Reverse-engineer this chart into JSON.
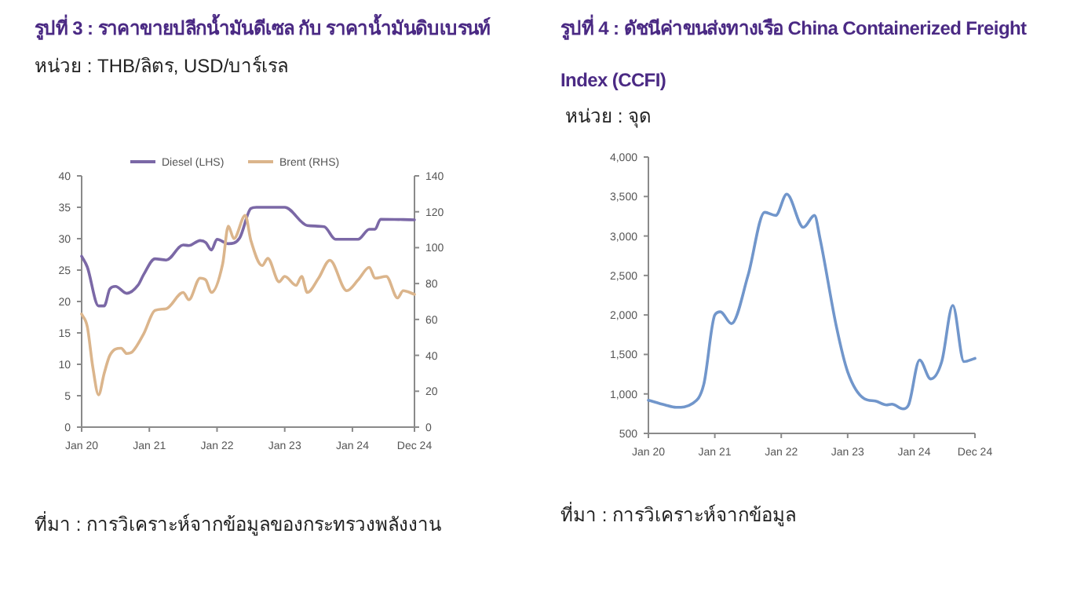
{
  "chart_data": [
    {
      "type": "line",
      "title": "รูปที่ 3 : ราคาขายปลีกน้ำมันดีเซล กับ ราคาน้ำมันดิบเบรนท์",
      "subtitle": "หน่วย : THB/ลิตร, USD/บาร์เรล",
      "annotations": [
        "ที่มา : การวิเคราะห์จากข้อมูลของกระทรวงพลังงาน"
      ],
      "legend": "top",
      "xlim": [
        "2020-01",
        "2024-12"
      ],
      "xticks": [
        {
          "value": "2020-01",
          "label": "Jan 20"
        },
        {
          "value": "2021-01",
          "label": "Jan 21"
        },
        {
          "value": "2022-01",
          "label": "Jan 22"
        },
        {
          "value": "2023-01",
          "label": "Jan 23"
        },
        {
          "value": "2024-01",
          "label": "Jan 24"
        },
        {
          "value": "2024-12",
          "label": "Dec 24"
        }
      ],
      "ylim": [
        0,
        40
      ],
      "yticks": [
        0,
        5,
        10,
        15,
        20,
        25,
        30,
        35,
        40
      ],
      "y2lim": [
        0,
        140
      ],
      "y2ticks": [
        0,
        20,
        40,
        60,
        80,
        100,
        120,
        140
      ],
      "series": [
        {
          "name": "Diesel (LHS)",
          "color": "#7b68a6",
          "x": [
            "2020-01",
            "2020-02",
            "2020-04",
            "2020-05",
            "2020-06",
            "2020-07",
            "2020-09",
            "2020-11",
            "2020-12",
            "2021-02",
            "2021-04",
            "2021-07",
            "2021-08",
            "2021-10",
            "2021-11",
            "2021-12",
            "2022-01",
            "2022-03",
            "2022-05",
            "2022-07",
            "2022-08",
            "2023-01",
            "2023-05",
            "2023-08",
            "2023-10",
            "2024-02",
            "2024-04",
            "2024-05",
            "2024-06",
            "2024-12"
          ],
          "values": [
            27.2,
            25.5,
            19.3,
            19.3,
            22.0,
            22.4,
            21.3,
            22.6,
            24.3,
            26.8,
            26.6,
            29.0,
            28.9,
            29.7,
            29.4,
            28.2,
            29.9,
            29.2,
            30.1,
            34.8,
            35.0,
            35.0,
            32.1,
            31.9,
            29.9,
            29.9,
            31.5,
            31.5,
            33.1,
            33.0
          ]
        },
        {
          "name": "Brent (RHS)",
          "color": "#dbb58c",
          "axis": "y2",
          "x": [
            "2020-01",
            "2020-02",
            "2020-03",
            "2020-04",
            "2020-05",
            "2020-06",
            "2020-08",
            "2020-09",
            "2020-10",
            "2020-12",
            "2021-02",
            "2021-04",
            "2021-07",
            "2021-08",
            "2021-10",
            "2021-11",
            "2021-12",
            "2022-02",
            "2022-03",
            "2022-04",
            "2022-06",
            "2022-07",
            "2022-09",
            "2022-10",
            "2022-12",
            "2023-01",
            "2023-03",
            "2023-04",
            "2023-05",
            "2023-07",
            "2023-09",
            "2023-12",
            "2024-02",
            "2024-04",
            "2024-05",
            "2024-07",
            "2024-09",
            "2024-10",
            "2024-12"
          ],
          "values": [
            63,
            56,
            33,
            18,
            30,
            40,
            44,
            41,
            42,
            52,
            65,
            66,
            75,
            71,
            83,
            82,
            75,
            91,
            112,
            105,
            118,
            104,
            90,
            94,
            81,
            84,
            79,
            84,
            75,
            83,
            93,
            76,
            82,
            89,
            83,
            84,
            72,
            76,
            74
          ]
        }
      ]
    },
    {
      "type": "line",
      "title": "รูปที่ 4 : ดัชนีค่าขนส่งทางเรือ China Containerized Freight Index (CCFI)",
      "subtitle": "หน่วย : จุด",
      "annotations": [
        "ที่มา : การวิเคราะห์จากข้อมูล"
      ],
      "xlim": [
        "2020-01",
        "2024-12"
      ],
      "xticks": [
        {
          "value": "2020-01",
          "label": "Jan 20"
        },
        {
          "value": "2021-01",
          "label": "Jan 21"
        },
        {
          "value": "2022-01",
          "label": "Jan 22"
        },
        {
          "value": "2023-01",
          "label": "Jan 23"
        },
        {
          "value": "2024-01",
          "label": "Jan 24"
        },
        {
          "value": "2024-12",
          "label": "Dec 24"
        }
      ],
      "ylim": [
        500,
        4000
      ],
      "yticks": [
        {
          "value": 500,
          "label": "500"
        },
        {
          "value": 1000,
          "label": "1,000"
        },
        {
          "value": 1500,
          "label": "1,500"
        },
        {
          "value": 2000,
          "label": "2,000"
        },
        {
          "value": 2500,
          "label": "2,500"
        },
        {
          "value": 3000,
          "label": "3,000"
        },
        {
          "value": 3500,
          "label": "3,500"
        },
        {
          "value": 4000,
          "label": "4,000"
        }
      ],
      "series": [
        {
          "color": "#7196cb",
          "x": [
            "2020-01",
            "2020-04",
            "2020-06",
            "2020-09",
            "2020-11",
            "2021-01",
            "2021-02",
            "2021-04",
            "2021-07",
            "2021-10",
            "2021-12",
            "2022-02",
            "2022-05",
            "2022-07",
            "2022-08",
            "2022-11",
            "2023-01",
            "2023-04",
            "2023-06",
            "2023-08",
            "2023-09",
            "2023-11",
            "2023-12",
            "2024-02",
            "2024-04",
            "2024-06",
            "2024-08",
            "2024-10",
            "2024-12"
          ],
          "values": [
            920,
            860,
            830,
            880,
            1120,
            2000,
            2040,
            1890,
            2500,
            3300,
            3260,
            3530,
            3110,
            3260,
            2970,
            1840,
            1280,
            940,
            910,
            860,
            870,
            810,
            860,
            1430,
            1190,
            1410,
            2120,
            1410,
            1450
          ]
        }
      ]
    }
  ]
}
